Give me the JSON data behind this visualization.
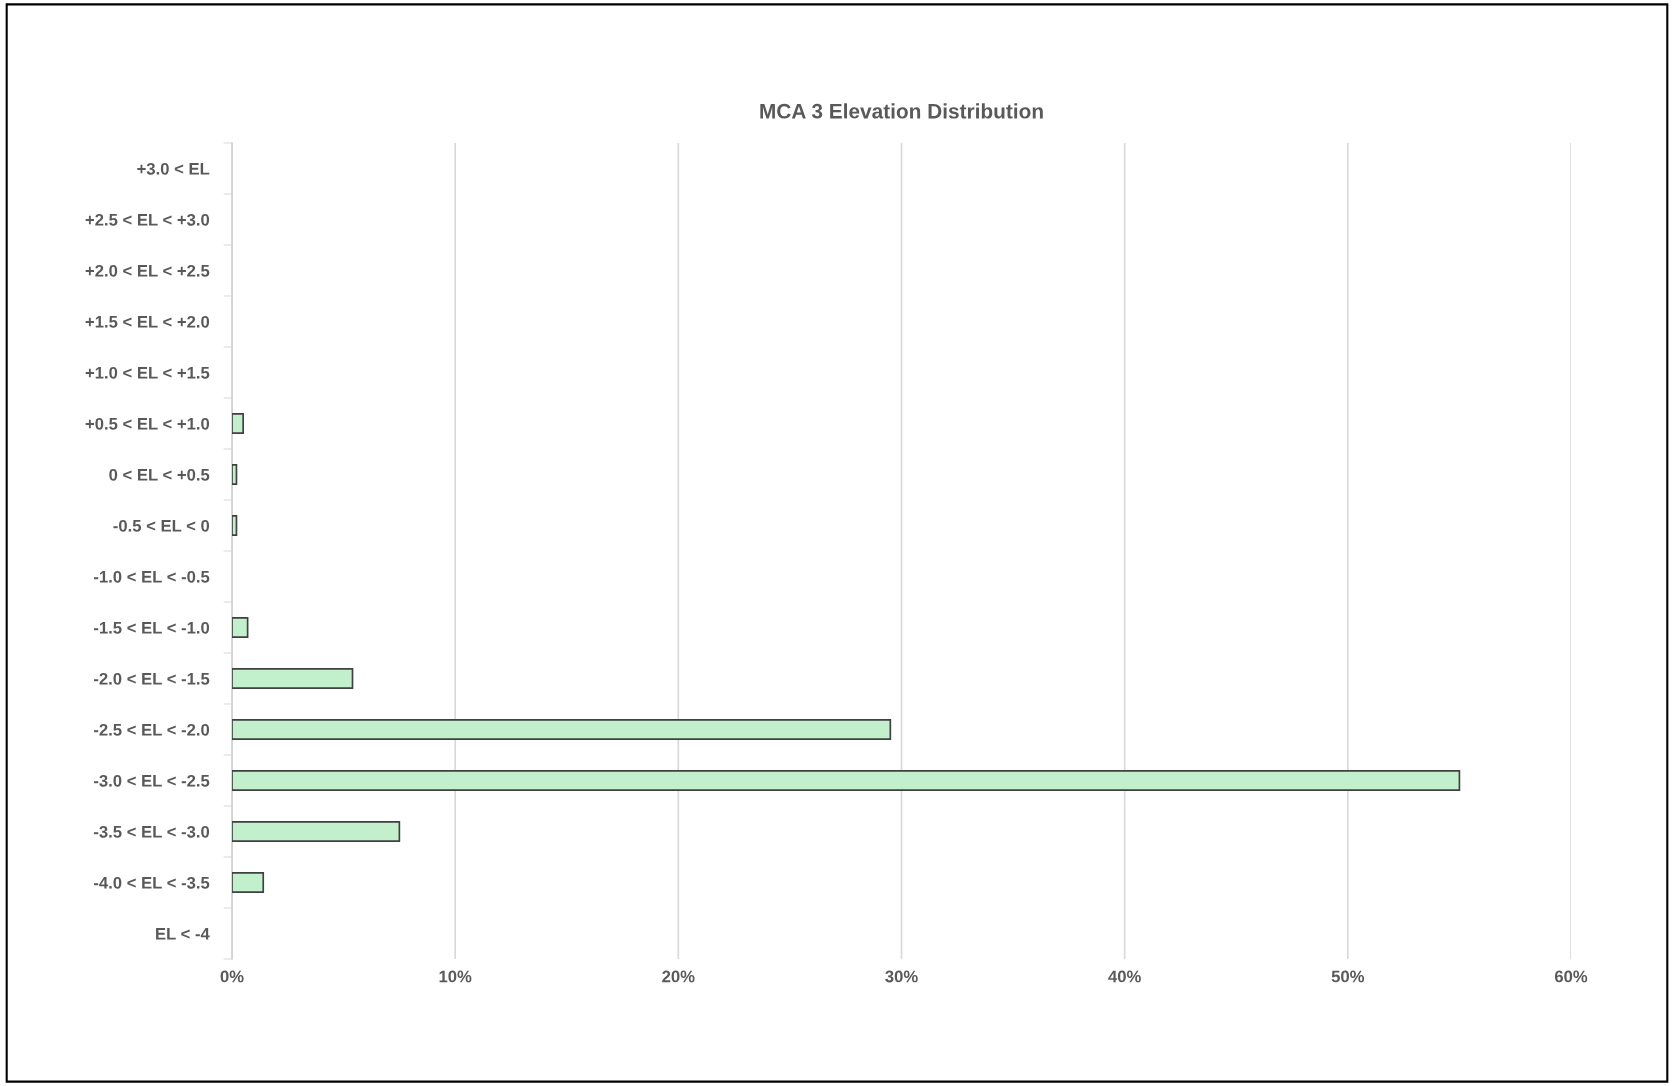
{
  "chart_data": {
    "type": "bar",
    "orientation": "horizontal",
    "title": "MCA 3 Elevation Distribution",
    "categories": [
      "+3.0 < EL",
      "+2.5 < EL < +3.0",
      "+2.0 < EL < +2.5",
      "+1.5 < EL < +2.0",
      "+1.0 < EL < +1.5",
      "+0.5 < EL < +1.0",
      "0 < EL < +0.5",
      "-0.5 < EL < 0",
      "-1.0 < EL < -0.5",
      "-1.5 < EL < -1.0",
      "-2.0 < EL < -1.5",
      "-2.5 < EL < -2.0",
      "-3.0 < EL < -2.5",
      "-3.5 < EL < -3.0",
      "-4.0 < EL < -3.5",
      "EL < -4"
    ],
    "values": [
      0,
      0,
      0,
      0,
      0,
      0.5,
      0.2,
      0.2,
      0,
      0.7,
      5.4,
      29.5,
      55.0,
      7.5,
      1.4,
      0
    ],
    "color": "#c2efcc",
    "xlim": [
      0,
      60
    ],
    "xticks": [
      {
        "value": 0,
        "label": "0%"
      },
      {
        "value": 10,
        "label": "10%"
      },
      {
        "value": 20,
        "label": "20%"
      },
      {
        "value": 30,
        "label": "30%"
      },
      {
        "value": 40,
        "label": "40%"
      },
      {
        "value": 50,
        "label": "50%"
      },
      {
        "value": 60,
        "label": "60%"
      }
    ],
    "grid": "x",
    "legend": false
  }
}
